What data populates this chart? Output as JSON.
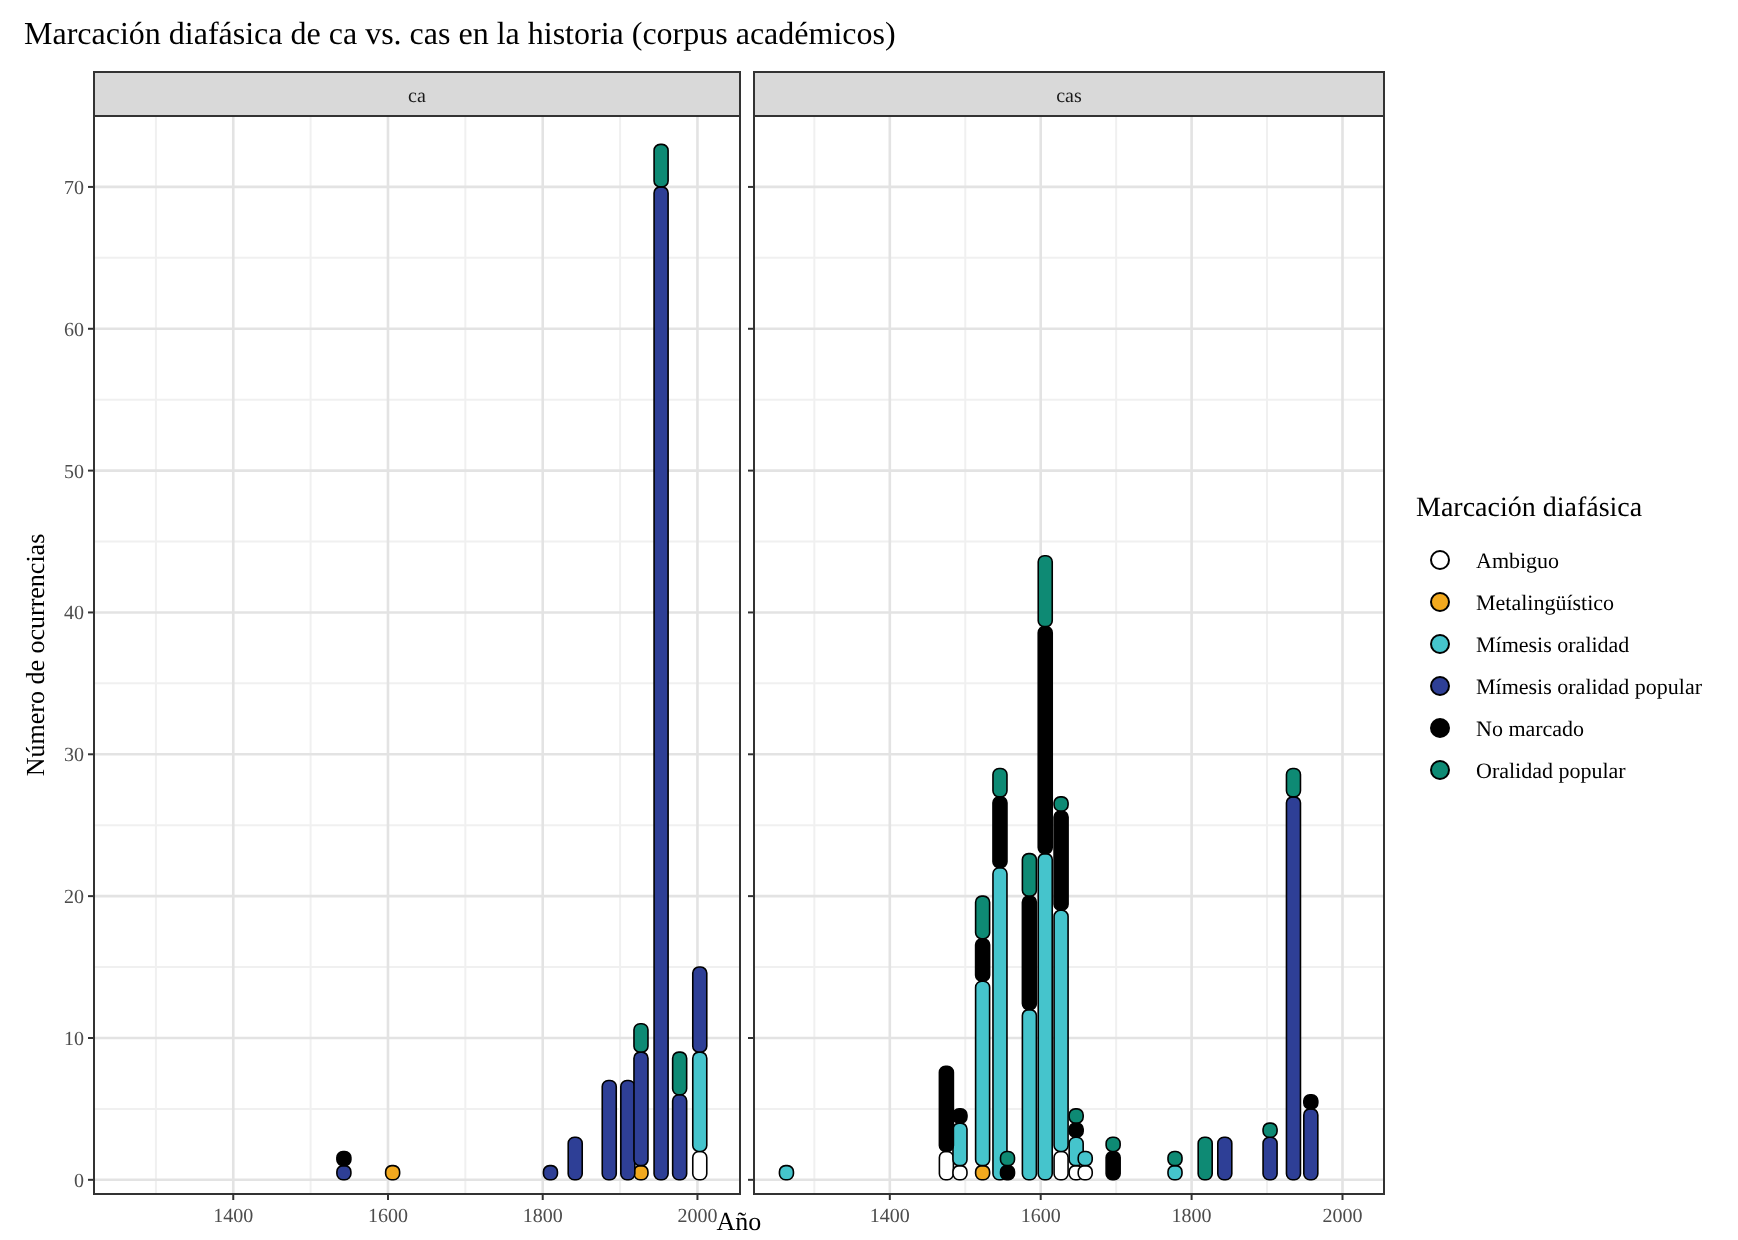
{
  "chart_data": [
    {
      "type": "bar",
      "stacked": true,
      "title": "Marcación diafásica de ca vs. cas en la historia (corpus académicos)",
      "subtitle": "ca",
      "xlabel": "Año",
      "ylabel": "Número de ocurrencias",
      "legend_title": "Marcación diafásica",
      "legend": "right",
      "grid": true,
      "marker": "circle",
      "xlim": [
        1220,
        2055
      ],
      "xticks": [
        1400,
        1600,
        1800,
        2000
      ],
      "ylim": [
        -1,
        75
      ],
      "yticks": [
        0,
        10,
        20,
        30,
        40,
        50,
        60,
        70
      ],
      "x": [
        1543,
        1606,
        1810,
        1842,
        1886,
        1910,
        1927,
        1953,
        1977,
        2003
      ],
      "series": [
        {
          "name": "Ambiguo",
          "color": "#ffffff",
          "values": [
            null,
            null,
            null,
            null,
            null,
            null,
            null,
            null,
            null,
            2
          ]
        },
        {
          "name": "Metalingüístico",
          "color": "#f2a91e",
          "values": [
            null,
            1,
            null,
            null,
            null,
            null,
            1,
            null,
            null,
            null
          ]
        },
        {
          "name": "Mímesis oralidad",
          "color": "#45c4cc",
          "values": [
            null,
            null,
            null,
            null,
            null,
            null,
            null,
            null,
            null,
            7
          ]
        },
        {
          "name": "Mímesis oralidad popular",
          "color": "#2e3f96",
          "values": [
            1,
            null,
            1,
            3,
            7,
            7,
            8,
            70,
            6,
            6
          ]
        },
        {
          "name": "No marcado",
          "color": "#000000",
          "values": [
            1,
            null,
            null,
            null,
            null,
            null,
            null,
            null,
            null,
            null
          ]
        },
        {
          "name": "Oralidad popular",
          "color": "#0e8a74",
          "values": [
            null,
            null,
            null,
            null,
            null,
            null,
            2,
            3,
            3,
            null
          ]
        }
      ]
    },
    {
      "type": "bar",
      "stacked": true,
      "subtitle": "cas",
      "grid": true,
      "tick_labels": "x",
      "xlim": [
        1220,
        2055
      ],
      "xticks": [
        1400,
        1600,
        1800,
        2000
      ],
      "ylim": [
        -1,
        75
      ],
      "yticks": [
        0,
        10,
        20,
        30,
        40,
        50,
        60,
        70
      ],
      "x": [
        1263,
        1475,
        1493,
        1523,
        1546,
        1556,
        1585,
        1606,
        1627,
        1647,
        1659,
        1696,
        1778,
        1818,
        1844,
        1904,
        1935,
        1958
      ],
      "series": [
        {
          "color": "#ffffff",
          "values": [
            null,
            2,
            1,
            null,
            null,
            null,
            null,
            null,
            2,
            1,
            1,
            null,
            null,
            null,
            null,
            null,
            null,
            null
          ]
        },
        {
          "color": "#f2a91e",
          "values": [
            null,
            null,
            null,
            1,
            null,
            null,
            null,
            null,
            null,
            null,
            null,
            null,
            null,
            null,
            null,
            null,
            null,
            null
          ]
        },
        {
          "color": "#45c4cc",
          "values": [
            1,
            null,
            3,
            13,
            22,
            null,
            12,
            23,
            17,
            2,
            1,
            null,
            1,
            null,
            null,
            null,
            null,
            null
          ]
        },
        {
          "color": "#2e3f96",
          "values": [
            null,
            null,
            null,
            null,
            null,
            null,
            null,
            null,
            null,
            null,
            null,
            null,
            null,
            null,
            3,
            3,
            27,
            5
          ]
        },
        {
          "color": "#000000",
          "values": [
            null,
            6,
            1,
            3,
            5,
            1,
            8,
            16,
            7,
            1,
            null,
            2,
            null,
            null,
            null,
            null,
            null,
            1
          ]
        },
        {
          "color": "#0e8a74",
          "values": [
            null,
            null,
            null,
            3,
            2,
            1,
            3,
            5,
            1,
            1,
            null,
            1,
            1,
            3,
            null,
            1,
            2,
            null
          ]
        }
      ]
    }
  ]
}
